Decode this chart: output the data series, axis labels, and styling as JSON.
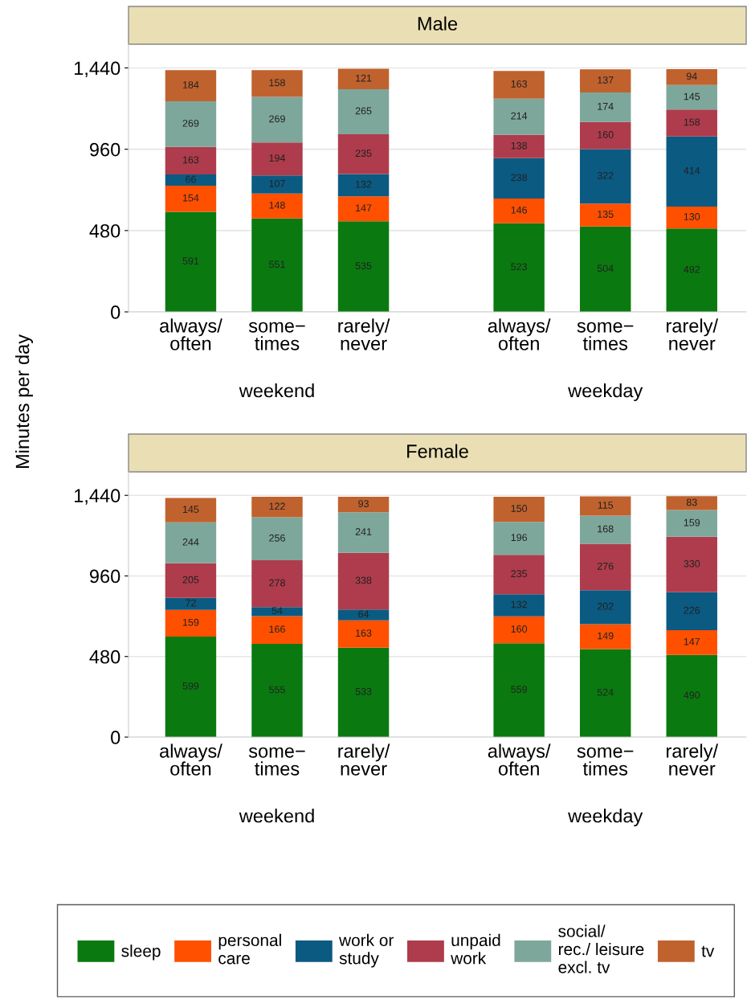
{
  "chart_data": [
    {
      "type": "bar",
      "title": "Male",
      "ylabel": "Minutes per day",
      "stacked": true,
      "data_labels": true,
      "grid": "y",
      "legend": "bottom",
      "categories": [
        "always/\noften",
        "some−\ntimes",
        "rarely/\nnever",
        "always/\noften",
        "some−\ntimes",
        "rarely/\nnever"
      ],
      "annotations": [
        "weekend",
        "weekday"
      ],
      "ylim": [
        0,
        1580
      ],
      "yticks": [
        0,
        480,
        960,
        {
          "value": 1440,
          "label": "1,440"
        }
      ],
      "series": [
        {
          "name": "sleep",
          "color": "#0a7a10",
          "values": [
            591,
            551,
            535,
            523,
            504,
            492
          ]
        },
        {
          "name": "personal\ncare",
          "color": "#ff5000",
          "values": [
            154,
            148,
            147,
            146,
            135,
            130
          ]
        },
        {
          "name": "work or\nstudy",
          "color": "#0b5a82",
          "values": [
            66,
            107,
            132,
            238,
            322,
            414
          ]
        },
        {
          "name": "unpaid\nwork",
          "color": "#ae3c4c",
          "values": [
            163,
            194,
            235,
            138,
            160,
            158
          ]
        },
        {
          "name": "social/\nrec./ leisure\nexcl. tv",
          "color": "#7ea79c",
          "values": [
            269,
            269,
            265,
            214,
            174,
            145
          ]
        },
        {
          "name": "tv",
          "color": "#c0622e",
          "values": [
            184,
            158,
            121,
            163,
            137,
            94
          ]
        }
      ]
    },
    {
      "type": "bar",
      "title": "Female",
      "stacked": true,
      "data_labels": true,
      "grid": "y",
      "categories": [
        "always/\noften",
        "some−\ntimes",
        "rarely/\nnever",
        "always/\noften",
        "some−\ntimes",
        "rarely/\nnever"
      ],
      "annotations": [
        "weekend",
        "weekday"
      ],
      "ylim": [
        0,
        1580
      ],
      "yticks": [
        0,
        480,
        960,
        {
          "value": 1440,
          "label": "1,440"
        }
      ],
      "series": [
        {
          "color": "#0a7a10",
          "values": [
            599,
            555,
            533,
            559,
            524,
            490
          ]
        },
        {
          "color": "#ff5000",
          "values": [
            159,
            166,
            163,
            160,
            149,
            147
          ]
        },
        {
          "color": "#0b5a82",
          "values": [
            72,
            54,
            64,
            132,
            202,
            226
          ]
        },
        {
          "color": "#ae3c4c",
          "values": [
            205,
            278,
            338,
            235,
            276,
            330
          ]
        },
        {
          "color": "#7ea79c",
          "values": [
            244,
            256,
            241,
            196,
            168,
            159
          ]
        },
        {
          "color": "#c0622e",
          "values": [
            145,
            122,
            93,
            150,
            115,
            83
          ]
        }
      ]
    }
  ]
}
